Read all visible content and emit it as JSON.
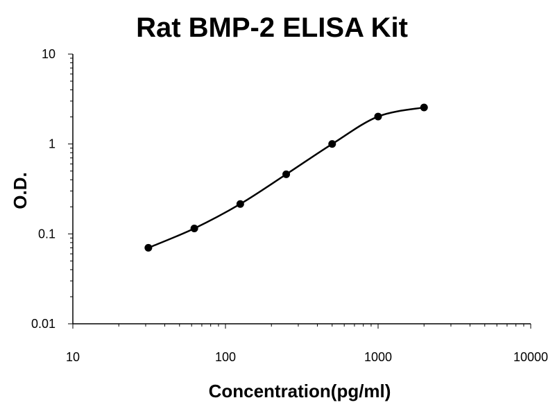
{
  "chart_data": {
    "type": "line",
    "title": "Rat BMP-2 ELISA Kit",
    "xlabel": "Concentration(pg/ml)",
    "ylabel": "O.D.",
    "x_scale": "log",
    "y_scale": "log",
    "xlim": [
      10,
      10000
    ],
    "ylim": [
      0.01,
      10
    ],
    "x_ticks": [
      "10",
      "100",
      "1000",
      "10000"
    ],
    "y_ticks": [
      "0.01",
      "0.1",
      "1",
      "10"
    ],
    "grid": false,
    "legend": "none",
    "series": [
      {
        "x": [
          31.25,
          62.5,
          125,
          250,
          500,
          1000,
          2000
        ],
        "y": [
          0.07,
          0.115,
          0.215,
          0.46,
          1.0,
          2.02,
          2.55
        ],
        "marker": "circle",
        "smooth": true,
        "color": "#000000"
      }
    ]
  }
}
